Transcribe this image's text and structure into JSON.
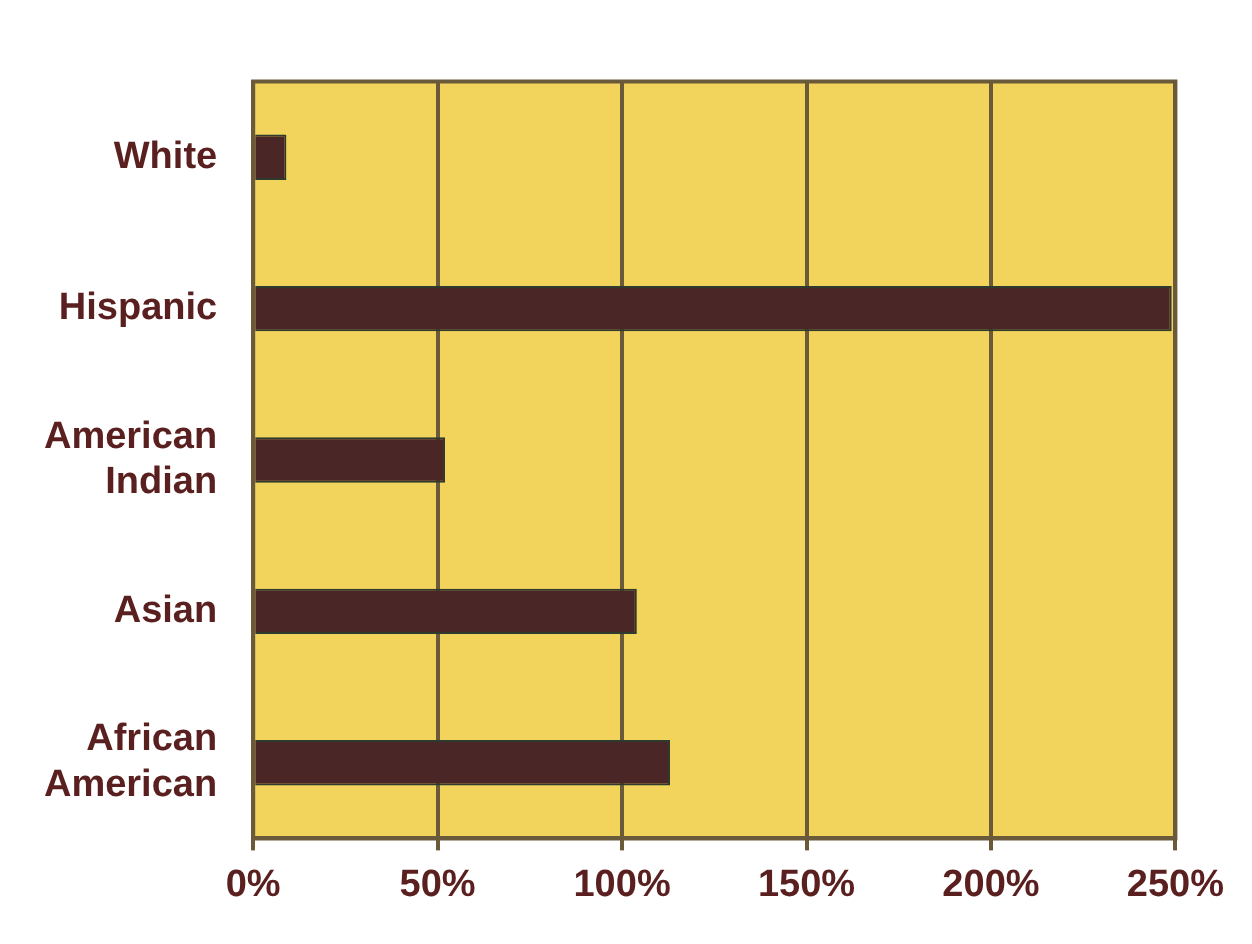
{
  "chart_data": {
    "type": "bar",
    "orientation": "horizontal",
    "categories": [
      "White",
      "Hispanic",
      "American Indian",
      "Asian",
      "African American"
    ],
    "values": [
      9,
      249,
      52,
      104,
      113
    ],
    "color": "#4a2626",
    "xlim": [
      0,
      250
    ],
    "xticks": [
      {
        "value": 0,
        "label": "0%"
      },
      {
        "value": 50,
        "label": "50%"
      },
      {
        "value": 100,
        "label": "100%"
      },
      {
        "value": 150,
        "label": "150%"
      },
      {
        "value": 200,
        "label": "200%"
      },
      {
        "value": 250,
        "label": "250%"
      }
    ],
    "grid": "x"
  }
}
